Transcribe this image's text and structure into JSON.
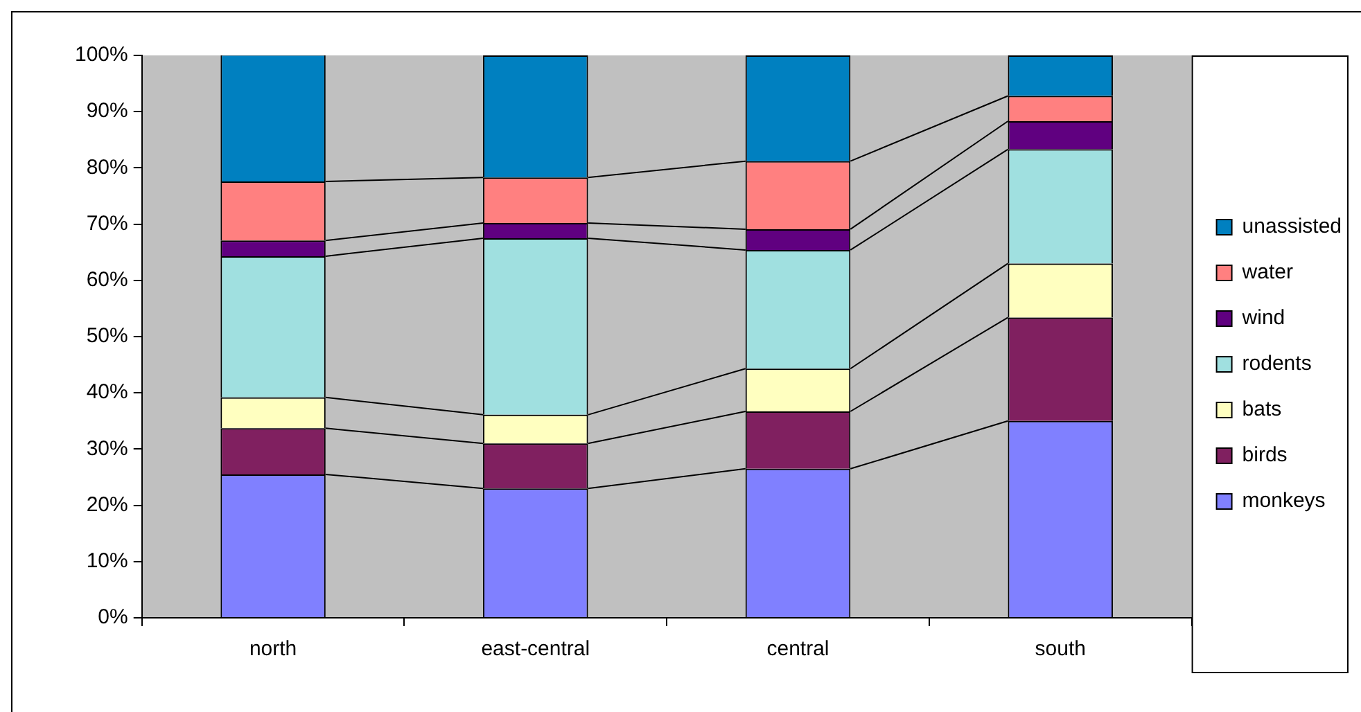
{
  "chart_data": {
    "type": "bar",
    "stacked": true,
    "categories": [
      "north",
      "east-central",
      "central",
      "south"
    ],
    "series": [
      {
        "name": "monkeys",
        "color": "#8080ff",
        "values": [
          25.5,
          23.0,
          26.5,
          35.0
        ]
      },
      {
        "name": "birds",
        "color": "#802060",
        "values": [
          8.2,
          8.0,
          10.2,
          18.4
        ]
      },
      {
        "name": "bats",
        "color": "#ffffc0",
        "values": [
          5.5,
          5.1,
          7.6,
          9.6
        ]
      },
      {
        "name": "rodents",
        "color": "#a0e0e0",
        "values": [
          25.1,
          31.4,
          21.1,
          20.3
        ]
      },
      {
        "name": "wind",
        "color": "#600080",
        "values": [
          2.8,
          2.7,
          3.7,
          5.0
        ]
      },
      {
        "name": "water",
        "color": "#ff8080",
        "values": [
          10.5,
          8.1,
          12.1,
          4.5
        ]
      },
      {
        "name": "unassisted",
        "color": "#0080c0",
        "values": [
          22.6,
          21.7,
          18.8,
          7.2
        ]
      }
    ],
    "ylim": [
      0,
      100
    ],
    "yticks": [
      {
        "value": 0,
        "label": "0%"
      },
      {
        "value": 10,
        "label": "10%"
      },
      {
        "value": 20,
        "label": "20%"
      },
      {
        "value": 30,
        "label": "30%"
      },
      {
        "value": 40,
        "label": "40%"
      },
      {
        "value": 50,
        "label": "50%"
      },
      {
        "value": 60,
        "label": "60%"
      },
      {
        "value": 70,
        "label": "70%"
      },
      {
        "value": 80,
        "label": "80%"
      },
      {
        "value": 90,
        "label": "90%"
      },
      {
        "value": 100,
        "label": "100%"
      }
    ],
    "grid": false,
    "legend": "right"
  }
}
